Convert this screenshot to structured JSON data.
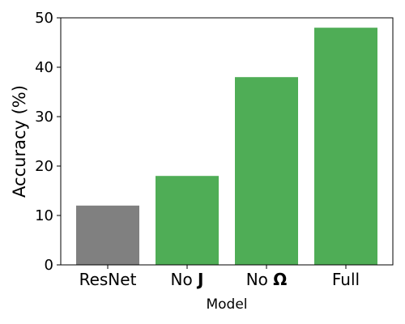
{
  "chart_data": {
    "type": "bar",
    "categories": [
      {
        "label": "ResNet",
        "parts": [
          {
            "text": "ResNet",
            "bold": false
          }
        ]
      },
      {
        "label": "No J",
        "parts": [
          {
            "text": "No ",
            "bold": false
          },
          {
            "text": "J",
            "bold": true
          }
        ]
      },
      {
        "label": "No Ω",
        "parts": [
          {
            "text": "No ",
            "bold": false
          },
          {
            "text": "Ω",
            "bold": true
          }
        ]
      },
      {
        "label": "Full",
        "parts": [
          {
            "text": "Full",
            "bold": false
          }
        ]
      }
    ],
    "values": [
      12,
      18,
      38,
      48
    ],
    "bar_colors": [
      "#808080",
      "#4fad56",
      "#4fad56",
      "#4fad56"
    ],
    "title": "",
    "xlabel": "Model",
    "ylabel": "Accuracy (%)",
    "ylim": [
      0,
      50
    ],
    "yticks": [
      0,
      10,
      20,
      30,
      40,
      50
    ],
    "grid": false,
    "legend": null
  }
}
